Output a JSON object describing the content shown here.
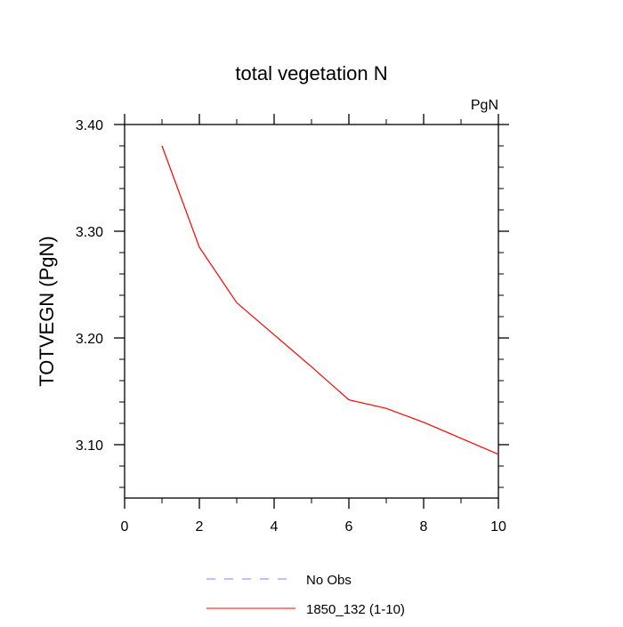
{
  "chart_data": {
    "type": "line",
    "title": "total vegetation N",
    "units_label": "PgN",
    "xlabel": "",
    "ylabel": "TOTVEGN  (PgN)",
    "xlim": [
      0,
      10
    ],
    "ylim": [
      3.05,
      3.4
    ],
    "x_ticks": [
      0,
      2,
      4,
      6,
      8,
      10
    ],
    "x_tick_labels": [
      "0",
      "2",
      "4",
      "6",
      "8",
      "10"
    ],
    "x_minor_ticks": [
      1,
      3,
      5,
      7,
      9
    ],
    "y_ticks": [
      3.1,
      3.2,
      3.3,
      3.4
    ],
    "y_tick_labels": [
      "3.10",
      "3.20",
      "3.30",
      "3.40"
    ],
    "y_minor_ticks": [
      3.06,
      3.08,
      3.12,
      3.14,
      3.16,
      3.18,
      3.22,
      3.24,
      3.26,
      3.28,
      3.32,
      3.34,
      3.36,
      3.38
    ],
    "grid": false,
    "series": [
      {
        "name": "No Obs",
        "color": "#8080ff",
        "dash": "dashed",
        "x": [],
        "y": []
      },
      {
        "name": "1850_132 (1-10)",
        "color": "#ff0000",
        "dash": "solid",
        "x": [
          1,
          2,
          3,
          4,
          5,
          6,
          7,
          8,
          9,
          10
        ],
        "y": [
          3.38,
          3.285,
          3.233,
          3.203,
          3.173,
          3.142,
          3.134,
          3.121,
          3.106,
          3.091
        ]
      }
    ],
    "legend": {
      "placement": "bottom-center",
      "entries": [
        "No Obs",
        "1850_132 (1-10)"
      ]
    }
  }
}
